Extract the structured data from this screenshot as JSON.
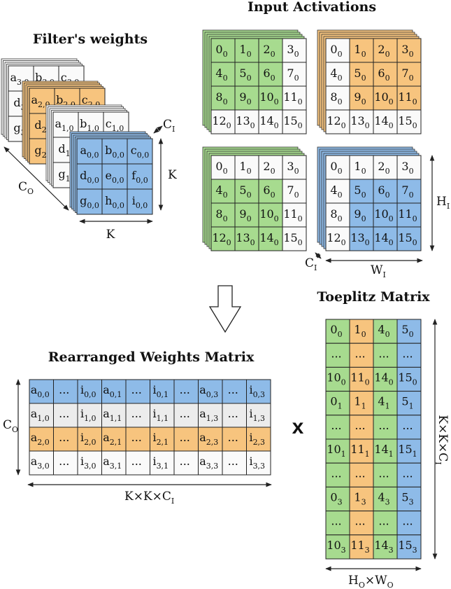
{
  "colors": {
    "green": "#a7db8f",
    "orange": "#f7c47e",
    "blue": "#8ebbe8",
    "gray": "#ececec",
    "white": "#fafafa",
    "line": "#222222"
  },
  "titles": {
    "filters": "Filter's weights",
    "input": "Input Activations",
    "rearranged": "Rearranged Weights Matrix",
    "toeplitz": "Toeplitz Matrix",
    "multiply": "x"
  },
  "labels": {
    "K": "K",
    "CO": [
      "C",
      "O"
    ],
    "CI": [
      "C",
      "I"
    ],
    "HI": [
      "H",
      "I"
    ],
    "WI": [
      "W",
      "I"
    ],
    "KKCI": [
      "K×K×C",
      "I"
    ],
    "HOWO": [
      "H",
      "O",
      "×W",
      "O"
    ]
  },
  "filter": {
    "back_cells": [
      [
        "a",
        "3,0",
        "b",
        "3,0",
        "c",
        "3,0"
      ],
      [
        "d",
        "3",
        ""
      ],
      [
        "g",
        "3",
        ""
      ]
    ],
    "mid_cells": [
      [
        "a",
        "2,0",
        "b",
        "2,0",
        "c",
        "2,0"
      ],
      [
        "d",
        "2",
        ""
      ],
      [
        "g",
        "2",
        ""
      ]
    ],
    "third_cells": [
      [
        "a",
        "1,0",
        "b",
        "1,0",
        "c",
        "1,0"
      ],
      [
        "d",
        "1",
        ""
      ],
      [
        "g",
        "1",
        ""
      ]
    ],
    "front_cells": [
      [
        [
          "a",
          "0,0"
        ],
        [
          "b",
          "0,0"
        ],
        [
          "c",
          "0,0"
        ]
      ],
      [
        [
          "d",
          "0,0"
        ],
        [
          "e",
          "0,0"
        ],
        [
          "f",
          "0,0"
        ]
      ],
      [
        [
          "g",
          "0,0"
        ],
        [
          "h",
          "0,0"
        ],
        [
          "i",
          "0,0"
        ]
      ]
    ]
  },
  "input_grid": [
    [
      [
        "0",
        "0"
      ],
      [
        "1",
        "0"
      ],
      [
        "2",
        "0"
      ],
      [
        "3",
        "0"
      ]
    ],
    [
      [
        "4",
        "0"
      ],
      [
        "5",
        "0"
      ],
      [
        "6",
        "0"
      ],
      [
        "7",
        "0"
      ]
    ],
    [
      [
        "8",
        "0"
      ],
      [
        "9",
        "0"
      ],
      [
        "10",
        "0"
      ],
      [
        "11",
        "0"
      ]
    ],
    [
      [
        "12",
        "0"
      ],
      [
        "13",
        "0"
      ],
      [
        "14",
        "0"
      ],
      [
        "15",
        "0"
      ]
    ]
  ],
  "input_windows": [
    {
      "color": "green",
      "rows": [
        0,
        2
      ],
      "cols": [
        0,
        2
      ]
    },
    {
      "color": "orange",
      "rows": [
        0,
        2
      ],
      "cols": [
        1,
        3
      ]
    },
    {
      "color": "green",
      "rows": [
        1,
        3
      ],
      "cols": [
        0,
        2
      ]
    },
    {
      "color": "blue",
      "rows": [
        1,
        3
      ],
      "cols": [
        1,
        3
      ]
    }
  ],
  "rearranged": {
    "row_colors": [
      "blue",
      "gray",
      "orange",
      "white"
    ],
    "rows": [
      [
        [
          "a",
          "0,0"
        ],
        [
          "...",
          ""
        ],
        [
          "i",
          "0,0"
        ],
        [
          "a",
          "0,1"
        ],
        [
          "...",
          ""
        ],
        [
          "i",
          "0,1"
        ],
        [
          "...",
          ""
        ],
        [
          "a",
          "0,3"
        ],
        [
          "...",
          ""
        ],
        [
          "i",
          "0,3"
        ]
      ],
      [
        [
          "a",
          "1,0"
        ],
        [
          "...",
          ""
        ],
        [
          "i",
          "1,0"
        ],
        [
          "a",
          "1,1"
        ],
        [
          "...",
          ""
        ],
        [
          "i",
          "1,1"
        ],
        [
          "...",
          ""
        ],
        [
          "a",
          "1,3"
        ],
        [
          "...",
          ""
        ],
        [
          "i",
          "1,3"
        ]
      ],
      [
        [
          "a",
          "2,0"
        ],
        [
          "...",
          ""
        ],
        [
          "i",
          "2,0"
        ],
        [
          "a",
          "2,1"
        ],
        [
          "...",
          ""
        ],
        [
          "i",
          "2,1"
        ],
        [
          "...",
          ""
        ],
        [
          "a",
          "2,3"
        ],
        [
          "...",
          ""
        ],
        [
          "i",
          "2,3"
        ]
      ],
      [
        [
          "a",
          "3,0"
        ],
        [
          "...",
          ""
        ],
        [
          "i",
          "3,0"
        ],
        [
          "a",
          "3,1"
        ],
        [
          "...",
          ""
        ],
        [
          "i",
          "3,1"
        ],
        [
          "...",
          ""
        ],
        [
          "a",
          "3,3"
        ],
        [
          "...",
          ""
        ],
        [
          "i",
          "3,3"
        ]
      ]
    ]
  },
  "toeplitz": {
    "col_colors": [
      "green",
      "orange",
      "green",
      "blue"
    ],
    "rows": [
      [
        [
          "0",
          "0"
        ],
        [
          "1",
          "0"
        ],
        [
          "4",
          "0"
        ],
        [
          "5",
          "0"
        ]
      ],
      [
        [
          "...",
          ""
        ],
        [
          "...",
          ""
        ],
        [
          "...",
          ""
        ],
        [
          "...",
          ""
        ]
      ],
      [
        [
          "10",
          "0"
        ],
        [
          "11",
          "0"
        ],
        [
          "14",
          "0"
        ],
        [
          "15",
          "0"
        ]
      ],
      [
        [
          "0",
          "1"
        ],
        [
          "1",
          "1"
        ],
        [
          "4",
          "1"
        ],
        [
          "5",
          "1"
        ]
      ],
      [
        [
          "...",
          ""
        ],
        [
          "...",
          ""
        ],
        [
          "...",
          ""
        ],
        [
          "...",
          ""
        ]
      ],
      [
        [
          "10",
          "1"
        ],
        [
          "11",
          "1"
        ],
        [
          "14",
          "1"
        ],
        [
          "15",
          "1"
        ]
      ],
      [
        [
          "...",
          ""
        ],
        [
          "...",
          ""
        ],
        [
          "...",
          ""
        ],
        [
          "...",
          ""
        ]
      ],
      [
        [
          "0",
          "3"
        ],
        [
          "1",
          "3"
        ],
        [
          "4",
          "3"
        ],
        [
          "5",
          "3"
        ]
      ],
      [
        [
          "...",
          ""
        ],
        [
          "...",
          ""
        ],
        [
          "...",
          ""
        ],
        [
          "...",
          ""
        ]
      ],
      [
        [
          "10",
          "3"
        ],
        [
          "11",
          "3"
        ],
        [
          "14",
          "3"
        ],
        [
          "15",
          "3"
        ]
      ]
    ]
  }
}
